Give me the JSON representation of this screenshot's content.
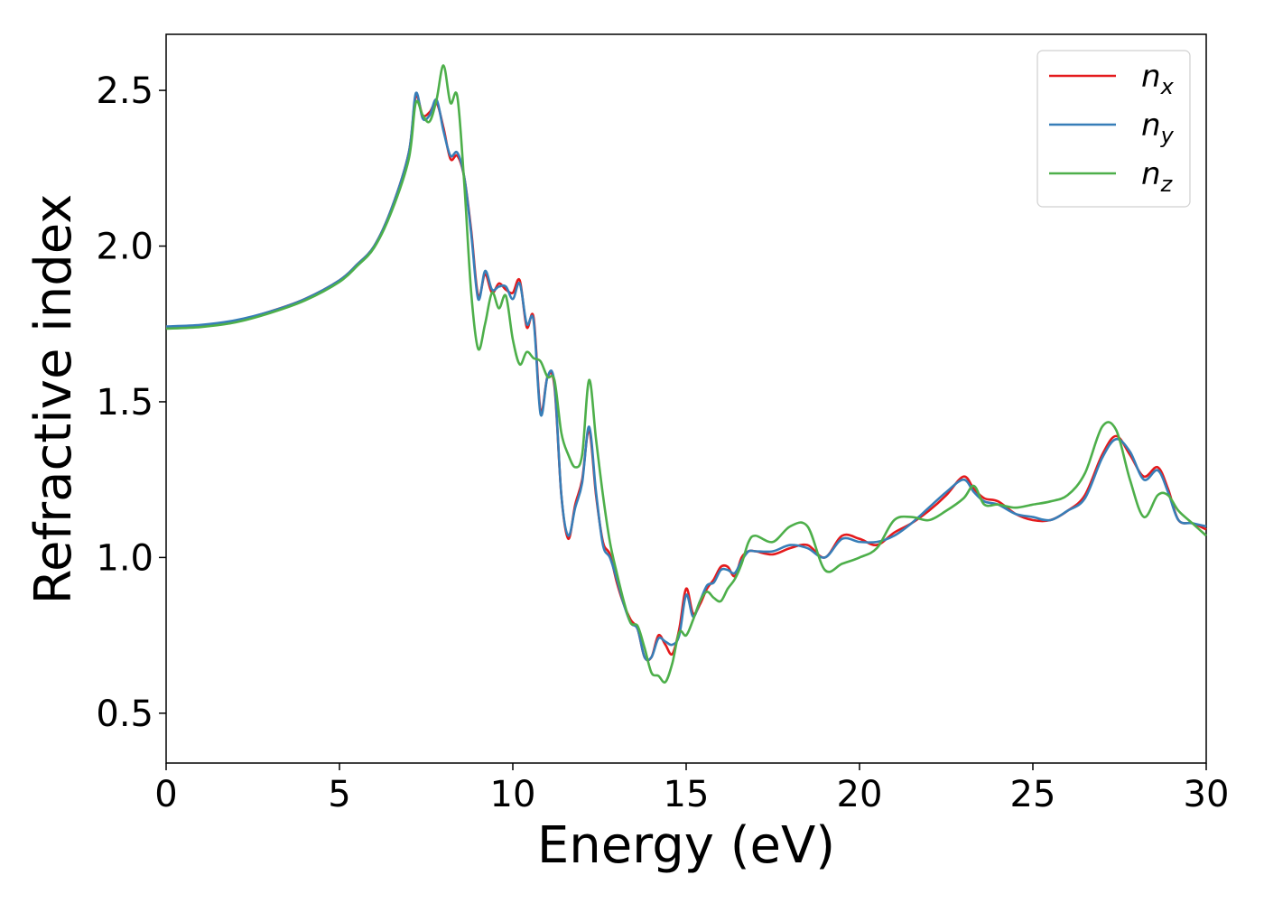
{
  "chart_data": {
    "type": "line",
    "xlabel": "Energy (eV)",
    "ylabel": "Refractive index",
    "xlim": [
      0,
      30
    ],
    "ylim": [
      0.34,
      2.68
    ],
    "xticks": [
      0,
      5,
      10,
      15,
      20,
      25,
      30
    ],
    "xtick_labels": [
      "0",
      "5",
      "10",
      "15",
      "20",
      "25",
      "30"
    ],
    "yticks": [
      0.5,
      1.0,
      1.5,
      2.0,
      2.5
    ],
    "ytick_labels": [
      "0.5",
      "1.0",
      "1.5",
      "2.0",
      "2.5"
    ],
    "grid": false,
    "legend_position": "top-right",
    "series": [
      {
        "name": "n",
        "subscript": "x",
        "color": "#e41a1c",
        "x": [
          0,
          1,
          2,
          3,
          4,
          5,
          5.5,
          6,
          6.5,
          7,
          7.2,
          7.4,
          7.6,
          7.8,
          8,
          8.2,
          8.4,
          8.6,
          8.8,
          9,
          9.2,
          9.4,
          9.6,
          9.8,
          10,
          10.2,
          10.4,
          10.6,
          10.8,
          11,
          11.2,
          11.4,
          11.6,
          11.8,
          12,
          12.2,
          12.4,
          12.6,
          12.8,
          13,
          13.2,
          13.4,
          13.6,
          13.8,
          14,
          14.2,
          14.4,
          14.6,
          14.8,
          15,
          15.2,
          15.4,
          15.6,
          15.8,
          16,
          16.2,
          16.4,
          16.6,
          16.8,
          17,
          17.5,
          18,
          18.5,
          19,
          19.5,
          20,
          20.5,
          21,
          21.5,
          22,
          22.5,
          23,
          23.3,
          23.6,
          24,
          24.5,
          25,
          25.5,
          26,
          26.5,
          27,
          27.4,
          27.8,
          28.2,
          28.6,
          28.9,
          29.2,
          29.6,
          30
        ],
        "y": [
          1.74,
          1.745,
          1.76,
          1.79,
          1.83,
          1.89,
          1.94,
          2.0,
          2.12,
          2.3,
          2.48,
          2.42,
          2.43,
          2.46,
          2.38,
          2.28,
          2.29,
          2.22,
          2.05,
          1.84,
          1.91,
          1.85,
          1.88,
          1.86,
          1.85,
          1.89,
          1.74,
          1.77,
          1.47,
          1.58,
          1.55,
          1.2,
          1.06,
          1.17,
          1.25,
          1.41,
          1.2,
          1.05,
          1.01,
          0.92,
          0.85,
          0.8,
          0.77,
          0.68,
          0.68,
          0.75,
          0.72,
          0.69,
          0.77,
          0.9,
          0.82,
          0.85,
          0.9,
          0.93,
          0.97,
          0.97,
          0.94,
          1.0,
          1.02,
          1.02,
          1.01,
          1.03,
          1.04,
          1.0,
          1.07,
          1.06,
          1.04,
          1.08,
          1.11,
          1.15,
          1.2,
          1.26,
          1.22,
          1.19,
          1.18,
          1.14,
          1.12,
          1.12,
          1.15,
          1.2,
          1.33,
          1.39,
          1.33,
          1.26,
          1.29,
          1.22,
          1.12,
          1.11,
          1.09
        ]
      },
      {
        "name": "n",
        "subscript": "y",
        "color": "#377eb8",
        "x": [
          0,
          1,
          2,
          3,
          4,
          5,
          5.5,
          6,
          6.5,
          7,
          7.2,
          7.4,
          7.6,
          7.8,
          8,
          8.2,
          8.4,
          8.6,
          8.8,
          9,
          9.2,
          9.4,
          9.6,
          9.8,
          10,
          10.2,
          10.4,
          10.6,
          10.8,
          11,
          11.2,
          11.4,
          11.6,
          11.8,
          12,
          12.2,
          12.4,
          12.6,
          12.8,
          13,
          13.2,
          13.4,
          13.6,
          13.8,
          14,
          14.2,
          14.4,
          14.6,
          14.8,
          15,
          15.2,
          15.4,
          15.6,
          15.8,
          16,
          16.2,
          16.4,
          16.6,
          16.8,
          17,
          17.5,
          18,
          18.5,
          19,
          19.5,
          20,
          20.5,
          21,
          21.5,
          22,
          22.5,
          23,
          23.3,
          23.6,
          24,
          24.5,
          25,
          25.5,
          26,
          26.5,
          27,
          27.4,
          27.8,
          28.2,
          28.6,
          28.9,
          29.2,
          29.6,
          30
        ],
        "y": [
          1.742,
          1.747,
          1.762,
          1.79,
          1.83,
          1.89,
          1.94,
          2.0,
          2.12,
          2.3,
          2.49,
          2.41,
          2.42,
          2.47,
          2.37,
          2.29,
          2.3,
          2.22,
          2.04,
          1.83,
          1.92,
          1.86,
          1.87,
          1.87,
          1.83,
          1.88,
          1.75,
          1.76,
          1.46,
          1.58,
          1.56,
          1.2,
          1.07,
          1.16,
          1.24,
          1.42,
          1.21,
          1.04,
          1.0,
          0.93,
          0.85,
          0.79,
          0.77,
          0.68,
          0.68,
          0.74,
          0.73,
          0.72,
          0.75,
          0.88,
          0.81,
          0.86,
          0.91,
          0.92,
          0.96,
          0.96,
          0.95,
          0.99,
          1.02,
          1.02,
          1.02,
          1.04,
          1.03,
          1.0,
          1.06,
          1.05,
          1.05,
          1.07,
          1.11,
          1.16,
          1.21,
          1.25,
          1.21,
          1.18,
          1.17,
          1.14,
          1.13,
          1.12,
          1.15,
          1.19,
          1.32,
          1.38,
          1.34,
          1.25,
          1.28,
          1.21,
          1.12,
          1.11,
          1.1
        ]
      },
      {
        "name": "n",
        "subscript": "z",
        "color": "#4daf4a",
        "x": [
          0,
          1,
          2,
          3,
          4,
          5,
          5.5,
          6,
          6.5,
          7,
          7.2,
          7.4,
          7.6,
          7.8,
          8,
          8.2,
          8.4,
          8.6,
          8.8,
          9,
          9.2,
          9.4,
          9.6,
          9.8,
          10,
          10.2,
          10.4,
          10.6,
          10.8,
          11,
          11.2,
          11.4,
          11.6,
          11.8,
          12,
          12.2,
          12.4,
          12.6,
          12.8,
          13,
          13.2,
          13.4,
          13.6,
          13.8,
          14,
          14.2,
          14.4,
          14.6,
          14.8,
          15,
          15.2,
          15.4,
          15.6,
          15.8,
          16,
          16.2,
          16.4,
          16.6,
          16.8,
          17,
          17.5,
          18,
          18.5,
          19,
          19.5,
          20,
          20.5,
          21,
          21.5,
          22,
          22.5,
          23,
          23.3,
          23.6,
          24,
          24.5,
          25,
          25.5,
          26,
          26.5,
          27,
          27.4,
          27.8,
          28.2,
          28.6,
          28.9,
          29.2,
          29.6,
          30
        ],
        "y": [
          1.735,
          1.74,
          1.755,
          1.785,
          1.825,
          1.885,
          1.935,
          1.995,
          2.11,
          2.28,
          2.46,
          2.42,
          2.4,
          2.47,
          2.58,
          2.46,
          2.48,
          2.2,
          1.85,
          1.67,
          1.75,
          1.85,
          1.8,
          1.84,
          1.7,
          1.62,
          1.66,
          1.64,
          1.63,
          1.58,
          1.57,
          1.4,
          1.33,
          1.29,
          1.33,
          1.57,
          1.38,
          1.2,
          1.05,
          0.95,
          0.86,
          0.79,
          0.78,
          0.71,
          0.63,
          0.62,
          0.6,
          0.66,
          0.76,
          0.75,
          0.8,
          0.86,
          0.89,
          0.87,
          0.86,
          0.9,
          0.93,
          0.98,
          1.05,
          1.07,
          1.05,
          1.1,
          1.1,
          0.96,
          0.98,
          1.0,
          1.03,
          1.12,
          1.13,
          1.12,
          1.15,
          1.19,
          1.23,
          1.17,
          1.17,
          1.16,
          1.17,
          1.18,
          1.2,
          1.27,
          1.42,
          1.41,
          1.25,
          1.13,
          1.2,
          1.2,
          1.15,
          1.11,
          1.07
        ]
      }
    ]
  }
}
